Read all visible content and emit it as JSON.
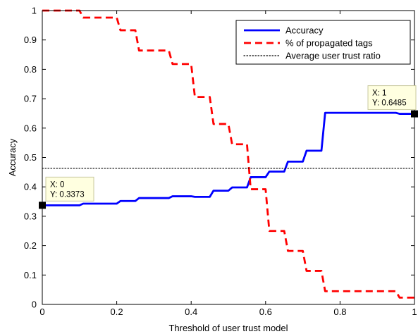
{
  "chart_data": {
    "type": "line",
    "title": "",
    "xlabel": "Threshold of user trust model",
    "ylabel": "Accuracy",
    "xlim": [
      0,
      1
    ],
    "ylim": [
      0,
      1
    ],
    "xticks": [
      "0",
      "0.2",
      "0.4",
      "0.6",
      "0.8",
      "1"
    ],
    "yticks": [
      "0",
      "0.1",
      "0.2",
      "0.3",
      "0.4",
      "0.5",
      "0.6",
      "0.7",
      "0.8",
      "0.9",
      "1"
    ],
    "grid": false,
    "legend_position": "top-right",
    "series": [
      {
        "name": "Accuracy",
        "color": "#0000ff",
        "line_style": "solid",
        "points": [
          [
            0,
            0.3373
          ],
          [
            0.1,
            0.3373
          ],
          [
            0.11,
            0.343
          ],
          [
            0.2,
            0.343
          ],
          [
            0.21,
            0.352
          ],
          [
            0.25,
            0.352
          ],
          [
            0.26,
            0.362
          ],
          [
            0.34,
            0.362
          ],
          [
            0.35,
            0.368
          ],
          [
            0.4,
            0.368
          ],
          [
            0.41,
            0.366
          ],
          [
            0.45,
            0.366
          ],
          [
            0.46,
            0.387
          ],
          [
            0.5,
            0.387
          ],
          [
            0.51,
            0.398
          ],
          [
            0.55,
            0.398
          ],
          [
            0.56,
            0.433
          ],
          [
            0.6,
            0.433
          ],
          [
            0.61,
            0.452
          ],
          [
            0.65,
            0.452
          ],
          [
            0.66,
            0.486
          ],
          [
            0.7,
            0.486
          ],
          [
            0.71,
            0.523
          ],
          [
            0.75,
            0.523
          ],
          [
            0.76,
            0.652
          ],
          [
            0.95,
            0.652
          ],
          [
            0.96,
            0.6485
          ],
          [
            1,
            0.6485
          ]
        ]
      },
      {
        "name": "% of propagated tags",
        "color": "#ff0000",
        "line_style": "dashed",
        "points": [
          [
            0,
            1.0
          ],
          [
            0.1,
            1.0
          ],
          [
            0.11,
            0.976
          ],
          [
            0.2,
            0.976
          ],
          [
            0.21,
            0.933
          ],
          [
            0.25,
            0.933
          ],
          [
            0.26,
            0.864
          ],
          [
            0.34,
            0.864
          ],
          [
            0.35,
            0.818
          ],
          [
            0.4,
            0.818
          ],
          [
            0.41,
            0.706
          ],
          [
            0.45,
            0.706
          ],
          [
            0.46,
            0.614
          ],
          [
            0.5,
            0.614
          ],
          [
            0.51,
            0.545
          ],
          [
            0.55,
            0.545
          ],
          [
            0.56,
            0.392
          ],
          [
            0.6,
            0.392
          ],
          [
            0.61,
            0.25
          ],
          [
            0.65,
            0.25
          ],
          [
            0.66,
            0.182
          ],
          [
            0.7,
            0.182
          ],
          [
            0.71,
            0.114
          ],
          [
            0.75,
            0.114
          ],
          [
            0.76,
            0.045
          ],
          [
            0.95,
            0.045
          ],
          [
            0.96,
            0.023
          ],
          [
            1,
            0.023
          ]
        ]
      },
      {
        "name": "Average user trust ratio",
        "color": "#000000",
        "line_style": "dotted",
        "points": [
          [
            0,
            0.463
          ],
          [
            1,
            0.463
          ]
        ]
      }
    ],
    "annotations": [
      {
        "x_label": "X: 0",
        "y_label": "Y: 0.3373",
        "x": 0,
        "y": 0.3373,
        "placement": "above-right"
      },
      {
        "x_label": "X: 1",
        "y_label": "Y: 0.6485",
        "x": 1,
        "y": 0.6485,
        "placement": "above-left"
      }
    ]
  }
}
